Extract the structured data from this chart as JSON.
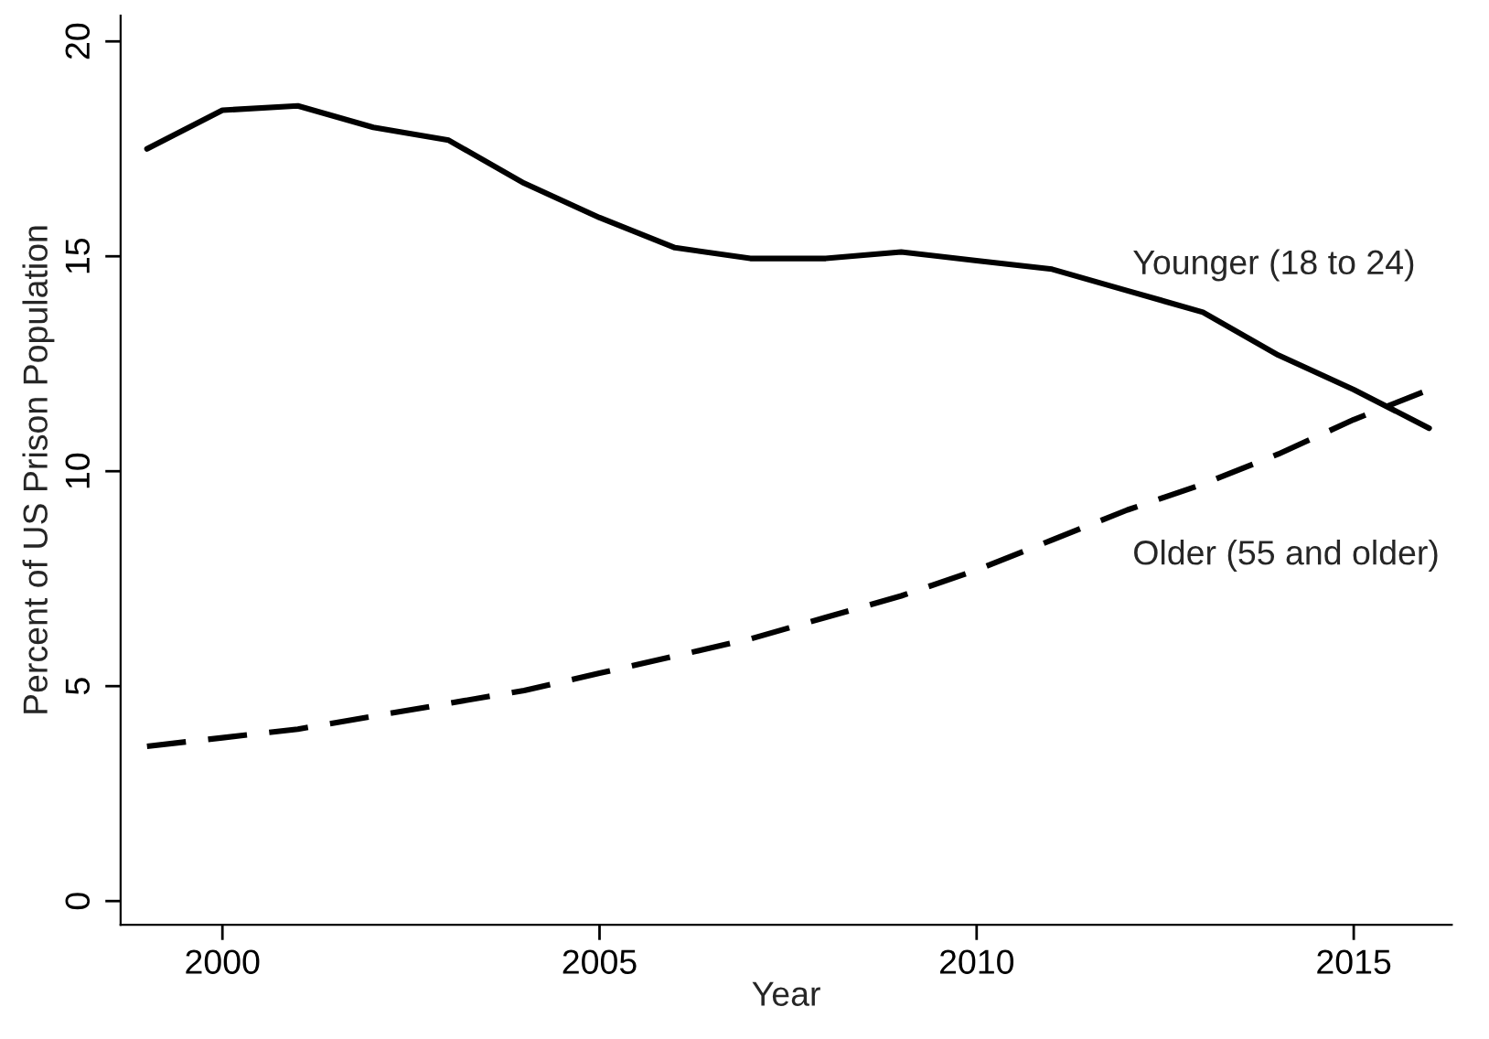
{
  "chart_data": {
    "type": "line",
    "xlabel": "Year",
    "ylabel": "Percent of US Prison Population",
    "x": [
      1999,
      2000,
      2001,
      2002,
      2003,
      2004,
      2005,
      2006,
      2007,
      2008,
      2009,
      2010,
      2011,
      2012,
      2013,
      2014,
      2015,
      2016
    ],
    "series": [
      {
        "name": "Younger (18 to 24)",
        "color": "#000000",
        "line_style": "solid",
        "values": [
          17.5,
          18.4,
          18.5,
          18.0,
          17.7,
          16.7,
          15.9,
          15.2,
          14.95,
          14.95,
          15.1,
          14.9,
          14.7,
          14.2,
          13.7,
          12.7,
          11.9,
          11.0
        ]
      },
      {
        "name": "Older (55 and older)",
        "color": "#000000",
        "line_style": "dashed",
        "values": [
          3.6,
          3.8,
          4.0,
          4.3,
          4.6,
          4.9,
          5.3,
          5.7,
          6.1,
          6.6,
          7.1,
          7.7,
          8.4,
          9.1,
          9.7,
          10.4,
          11.2,
          11.9
        ]
      }
    ],
    "xlim": [
      1998.65,
      2016.3
    ],
    "xticks": [
      2000,
      2005,
      2010,
      2015
    ],
    "ylim": [
      -0.55,
      20.6
    ],
    "yticks": [
      0,
      5,
      10,
      15,
      20
    ],
    "grid": false,
    "legend": false
  }
}
